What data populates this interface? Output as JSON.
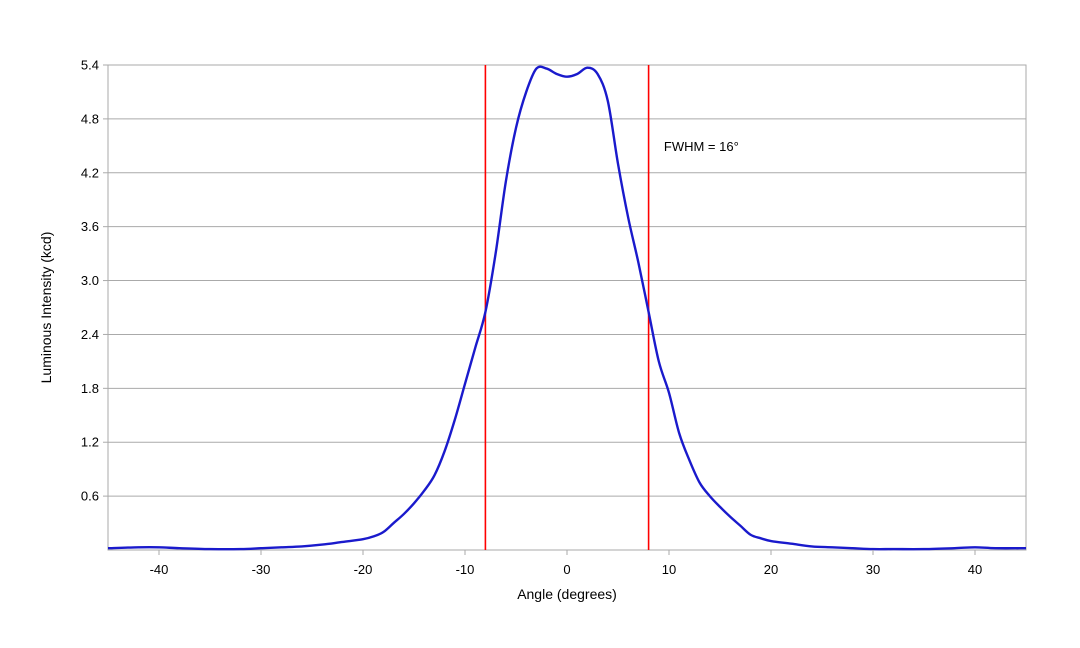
{
  "chart_data": {
    "type": "line",
    "title": "",
    "xlabel": "Angle (degrees)",
    "ylabel": "Luminous Intensity (kcd)",
    "xlim": [
      -45,
      45
    ],
    "ylim": [
      0,
      5.4
    ],
    "x_ticks": [
      -40,
      -30,
      -20,
      -10,
      0,
      10,
      20,
      30,
      40
    ],
    "x_tick_labels": [
      "-40",
      "-30",
      "-20",
      "-10",
      "0",
      "10",
      "20",
      "30",
      "40"
    ],
    "y_ticks": [
      0.6,
      1.2,
      1.8,
      2.4,
      3.0,
      3.6,
      4.2,
      4.8,
      5.4
    ],
    "y_tick_labels": [
      "0.6",
      "1.2",
      "1.8",
      "2.4",
      "3.0",
      "3.6",
      "4.2",
      "4.8",
      "5.4"
    ],
    "grid": "horizontal",
    "legend": "none",
    "series": [
      {
        "color": "#1a1acc",
        "x": [
          -45,
          -42,
          -40,
          -38,
          -35,
          -32,
          -30,
          -28,
          -26,
          -24,
          -22,
          -20,
          -19,
          -18,
          -17,
          -16,
          -15,
          -14,
          -13,
          -12,
          -11,
          -10,
          -9,
          -8,
          -7,
          -6,
          -5,
          -4,
          -3,
          -2,
          -1,
          0,
          1,
          2,
          3,
          4,
          5,
          6,
          7,
          8,
          9,
          10,
          11,
          12,
          13,
          14,
          15,
          16,
          17,
          18,
          19,
          20,
          22,
          24,
          26,
          28,
          30,
          32,
          35,
          38,
          40,
          42,
          45
        ],
        "y": [
          0.02,
          0.03,
          0.03,
          0.02,
          0.01,
          0.01,
          0.02,
          0.03,
          0.04,
          0.06,
          0.09,
          0.12,
          0.15,
          0.2,
          0.3,
          0.4,
          0.52,
          0.66,
          0.83,
          1.1,
          1.45,
          1.85,
          2.25,
          2.65,
          3.3,
          4.1,
          4.7,
          5.1,
          5.36,
          5.36,
          5.3,
          5.27,
          5.3,
          5.37,
          5.3,
          5.0,
          4.3,
          3.7,
          3.2,
          2.65,
          2.1,
          1.75,
          1.3,
          1.0,
          0.75,
          0.6,
          0.48,
          0.37,
          0.27,
          0.17,
          0.13,
          0.1,
          0.07,
          0.04,
          0.03,
          0.02,
          0.01,
          0.01,
          0.01,
          0.02,
          0.03,
          0.02,
          0.02
        ]
      }
    ],
    "vertical_lines": [
      {
        "x": -8,
        "color": "#ff0000"
      },
      {
        "x": 8,
        "color": "#ff0000"
      }
    ],
    "annotations": [
      {
        "text": "FWHM = 16°",
        "x": 9.5,
        "y": 4.44
      }
    ]
  }
}
